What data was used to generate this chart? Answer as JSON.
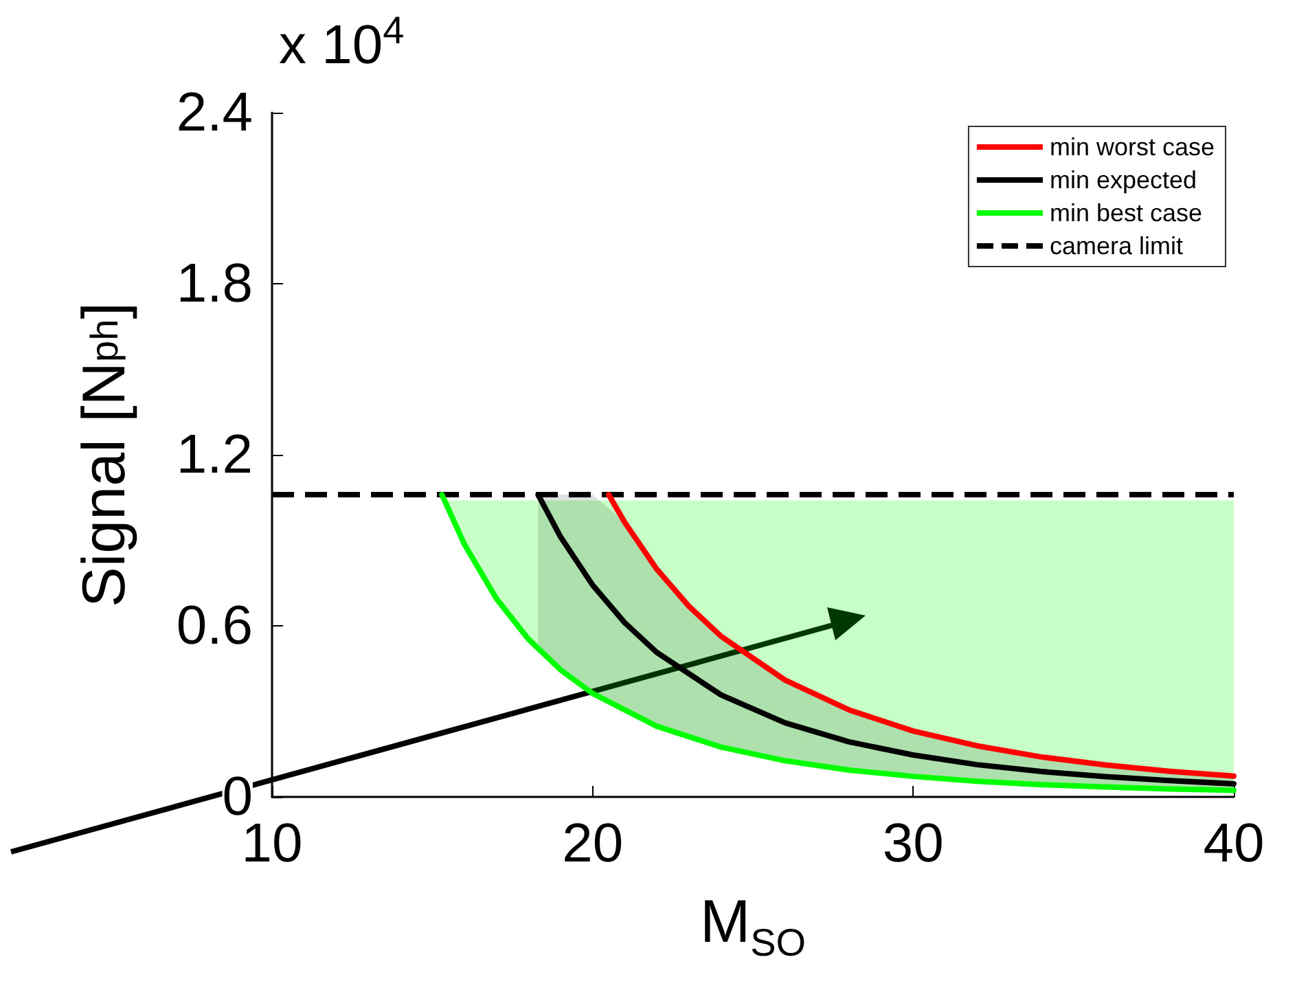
{
  "chart_data": {
    "type": "line",
    "xlabel": "M$_{SO}$",
    "ylabel": "Signal [N$_{ph}$]",
    "annotations": [
      "x 10$^{4}$"
    ],
    "xlim": [
      10,
      40
    ],
    "xticks": [
      10,
      20,
      30,
      40
    ],
    "ylim": [
      0,
      2.4
    ],
    "yticks": [
      0,
      0.6,
      1.2,
      1.8,
      2.4
    ],
    "grid": false,
    "legend": "top right",
    "marker": "none",
    "line_style": "solid",
    "series": [
      {
        "name": "min worst case",
        "color": "#ff0000",
        "x": [
          20.5,
          21,
          22,
          23,
          24,
          26,
          28,
          30,
          32,
          34,
          36,
          38,
          40
        ],
        "values": [
          1.06,
          0.963,
          0.799,
          0.669,
          0.564,
          0.41,
          0.305,
          0.231,
          0.179,
          0.14,
          0.112,
          0.09,
          0.073
        ]
      },
      {
        "name": "min expected",
        "color": "#000000",
        "x": [
          18.3,
          19,
          20,
          21,
          22,
          24,
          26,
          28,
          30,
          32,
          34,
          36,
          38,
          40
        ],
        "values": [
          1.06,
          0.912,
          0.743,
          0.611,
          0.507,
          0.358,
          0.26,
          0.193,
          0.147,
          0.113,
          0.089,
          0.071,
          0.057,
          0.046
        ],
        "lower": [
          0.518,
          0.446,
          0.363,
          0.299,
          0.248,
          0.175,
          0.127,
          0.094,
          0.072,
          0.055,
          0.043,
          0.035,
          0.028,
          0.023
        ],
        "upper": [
          1.06,
          1.06,
          1.06,
          0.963,
          0.799,
          0.564,
          0.41,
          0.305,
          0.231,
          0.179,
          0.14,
          0.112,
          0.09,
          0.073
        ]
      },
      {
        "name": "min best case",
        "color": "#00ff00",
        "x": [
          15.3,
          16,
          17,
          18,
          19,
          20,
          22,
          24,
          26,
          28,
          30,
          32,
          34,
          36,
          38,
          40
        ],
        "values": [
          1.06,
          0.886,
          0.695,
          0.553,
          0.446,
          0.363,
          0.248,
          0.175,
          0.127,
          0.094,
          0.072,
          0.055,
          0.043,
          0.035,
          0.028,
          0.023
        ],
        "lower": [
          1.06,
          0.886,
          0.695,
          0.553,
          0.446,
          0.363,
          0.248,
          0.175,
          0.127,
          0.094,
          0.072,
          0.055,
          0.043,
          0.035,
          0.028,
          0.023
        ],
        "upper": [
          1.04,
          1.04,
          1.04,
          1.04,
          1.04,
          1.04,
          1.04,
          1.04,
          1.04,
          1.04,
          1.04,
          1.04,
          1.04,
          1.04,
          1.04,
          1.04
        ]
      }
    ],
    "ref_lines": [
      {
        "axis": "y",
        "value": 1.06,
        "label": "camera limit",
        "color": "#000000",
        "line_style": "dashed"
      }
    ]
  }
}
